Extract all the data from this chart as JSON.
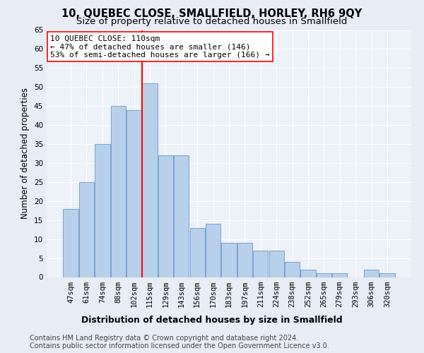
{
  "title": "10, QUEBEC CLOSE, SMALLFIELD, HORLEY, RH6 9QY",
  "subtitle": "Size of property relative to detached houses in Smallfield",
  "xlabel": "Distribution of detached houses by size in Smallfield",
  "ylabel": "Number of detached properties",
  "bar_labels": [
    "47sqm",
    "61sqm",
    "74sqm",
    "88sqm",
    "102sqm",
    "115sqm",
    "129sqm",
    "143sqm",
    "156sqm",
    "170sqm",
    "183sqm",
    "197sqm",
    "211sqm",
    "224sqm",
    "238sqm",
    "252sqm",
    "265sqm",
    "279sqm",
    "293sqm",
    "306sqm",
    "320sqm"
  ],
  "bar_values": [
    18,
    25,
    35,
    45,
    44,
    51,
    32,
    32,
    13,
    14,
    9,
    9,
    7,
    7,
    4,
    2,
    1,
    1,
    0,
    2,
    1
  ],
  "bar_color": "#b8d0ea",
  "bar_edge_color": "#6699cc",
  "vline_x": 4.5,
  "annotation_line1": "10 QUEBEC CLOSE: 110sqm",
  "annotation_line2": "← 47% of detached houses are smaller (146)",
  "annotation_line3": "53% of semi-detached houses are larger (166) →",
  "ylim": [
    0,
    65
  ],
  "yticks": [
    0,
    5,
    10,
    15,
    20,
    25,
    30,
    35,
    40,
    45,
    50,
    55,
    60,
    65
  ],
  "footer_line1": "Contains HM Land Registry data © Crown copyright and database right 2024.",
  "footer_line2": "Contains public sector information licensed under the Open Government Licence v3.0.",
  "bg_color": "#e8ecf5",
  "plot_bg_color": "#edf1f8",
  "title_fontsize": 10.5,
  "subtitle_fontsize": 9.5,
  "ylabel_fontsize": 8.5,
  "tick_fontsize": 7.5,
  "annotation_fontsize": 8,
  "xlabel_fontsize": 9,
  "footer_fontsize": 7
}
